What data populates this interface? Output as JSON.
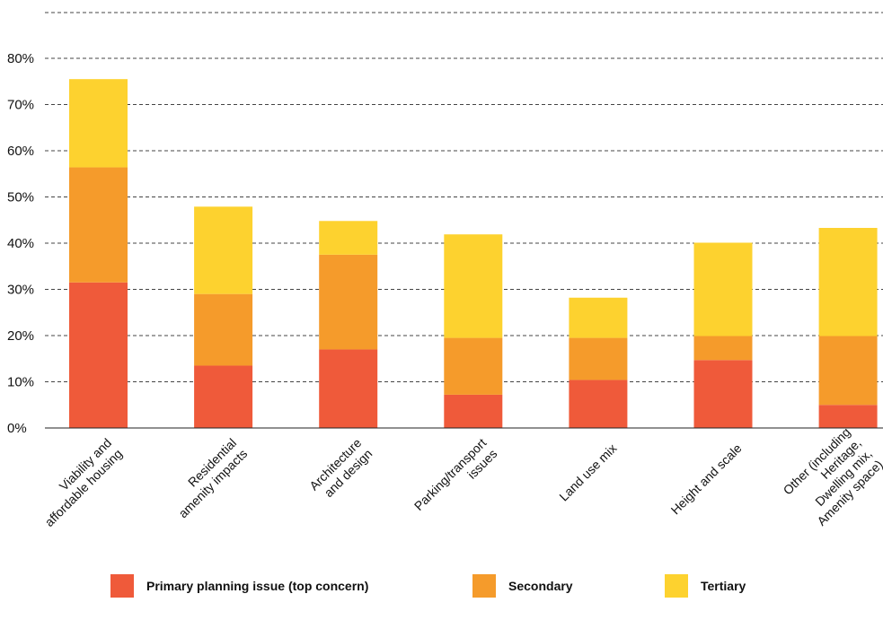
{
  "chart_data": {
    "type": "bar",
    "stacked": true,
    "categories": [
      [
        "Viability and",
        "affordable housing"
      ],
      [
        "Residential",
        "amenity impacts"
      ],
      [
        "Architecture",
        "and design"
      ],
      [
        "Parking/transport",
        "issues"
      ],
      [
        "Land use mix"
      ],
      [
        "Height and scale"
      ],
      [
        "Other (including",
        "Heritage,",
        "Dwelling mix,",
        "Amenity space)"
      ]
    ],
    "series": [
      {
        "name": "Primary planning issue (top concern)",
        "color": "#ef5a3a",
        "values": [
          31.5,
          13.5,
          17,
          7.2,
          10.4,
          14.7,
          5
        ]
      },
      {
        "name": "Secondary",
        "color": "#f59b2b",
        "values": [
          24.9,
          15.5,
          20.5,
          12.3,
          9.1,
          5.2,
          14.9
        ]
      },
      {
        "name": "Tertiary",
        "color": "#fdd22f",
        "values": [
          19.1,
          18.9,
          7.3,
          22.4,
          8.7,
          20.2,
          23.4
        ]
      }
    ],
    "ylim": [
      0,
      80
    ],
    "yticks": [
      "0%",
      "10%",
      "20%",
      "30%",
      "40%",
      "50%",
      "60%",
      "70%",
      "80%"
    ],
    "grid": true,
    "legend_position": "bottom"
  }
}
